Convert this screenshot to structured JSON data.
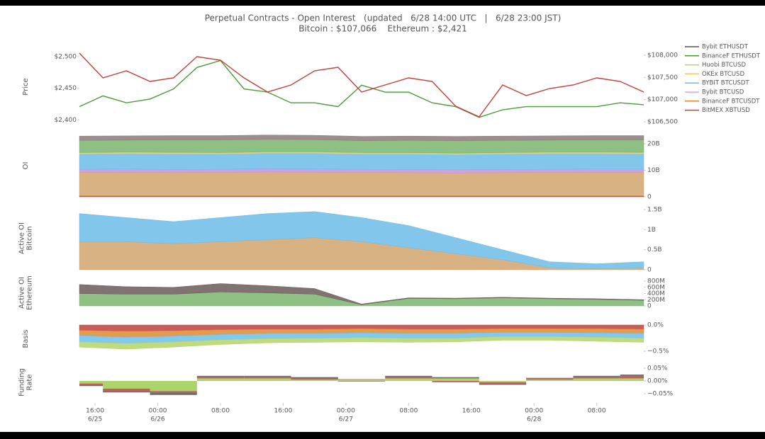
{
  "title": "Perpetual Contracts - Open Interest   (updated   6/28 14:00 UTC   |   6/28 23:00 JST)",
  "subtitle": "Bitcoin : $107,066    Ethereum : $2,421",
  "legend": {
    "corner": "right",
    "items": [
      {
        "name": "Bybit ETHUSDT",
        "color": "#5a5050"
      },
      {
        "name": "BinanceF ETHUSDT",
        "color": "#4c9a3c"
      },
      {
        "name": "Huobi BTCUSD",
        "color": "#b5d36a"
      },
      {
        "name": "OKEx BTCUSD",
        "color": "#e8c56a"
      },
      {
        "name": "BYBIT BTCUSDT",
        "color": "#6cc0ec"
      },
      {
        "name": "Bybit BTCUSD",
        "color": "#d8a8d8"
      },
      {
        "name": "BinanceF BTCUSDT",
        "color": "#e08a30"
      },
      {
        "name": "BitMEX XBTUSD",
        "color": "#c0403a"
      }
    ]
  },
  "chart_data": [
    {
      "type": "line",
      "ylabel": [
        "Price"
      ],
      "tick_color": "#4a70b0",
      "y2tick_color": "#c0403a",
      "xlim": [
        "6/25 14:00",
        "6/28 14:00"
      ],
      "x": [
        "6/25 14:00",
        "6/25 17:00",
        "6/25 20:00",
        "6/25 23:00",
        "6/26 02:00",
        "6/26 05:00",
        "6/26 08:00",
        "6/26 11:00",
        "6/26 14:00",
        "6/26 17:00",
        "6/26 20:00",
        "6/26 23:00",
        "6/27 02:00",
        "6/27 05:00",
        "6/27 08:00",
        "6/27 11:00",
        "6/27 14:00",
        "6/27 17:00",
        "6/27 20:00",
        "6/27 23:00",
        "6/28 02:00",
        "6/28 05:00",
        "6/28 08:00",
        "6/28 11:00",
        "6/28 14:00"
      ],
      "ylim": [
        2388,
        2517
      ],
      "yticks": [
        {
          "value": 2400,
          "label": "$2,400"
        },
        {
          "value": 2450,
          "label": "$2,450"
        },
        {
          "value": 2500,
          "label": "$2,500"
        }
      ],
      "y2lim": [
        106372,
        108207
      ],
      "y2ticks": [
        {
          "value": 106500,
          "label": "$106,500"
        },
        {
          "value": 107000,
          "label": "$107,000"
        },
        {
          "value": 107500,
          "label": "$107,500"
        },
        {
          "value": 108000,
          "label": "$108,000"
        }
      ],
      "series": [
        {
          "name": "BinanceF ETHUSDT",
          "color": "#4c9a3c",
          "values": [
            2421,
            2438,
            2427,
            2433,
            2449,
            2483,
            2494,
            2449,
            2444,
            2427,
            2427,
            2421,
            2455,
            2444,
            2444,
            2427,
            2421,
            2404,
            2416,
            2421,
            2421,
            2421,
            2421,
            2427,
            2424
          ]
        },
        {
          "name": "BitMEX XBTUSD",
          "color": "#c0403a",
          "axis": "y2",
          "values": [
            108047,
            107489,
            107648,
            107409,
            107489,
            107967,
            107888,
            107489,
            107170,
            107329,
            107648,
            107728,
            107170,
            107329,
            107489,
            107409,
            106851,
            106612,
            107329,
            107090,
            107250,
            107329,
            107489,
            107409,
            107170
          ]
        }
      ]
    },
    {
      "type": "area",
      "ylabel": [
        "OI"
      ],
      "tick_color": "#555",
      "xlim": [
        "6/25 14:00",
        "6/28 14:00"
      ],
      "x": [
        "6/25 14:00",
        "6/25 20:00",
        "6/26 02:00",
        "6/26 08:00",
        "6/26 14:00",
        "6/26 20:00",
        "6/27 02:00",
        "6/27 08:00",
        "6/27 14:00",
        "6/27 20:00",
        "6/28 02:00",
        "6/28 08:00",
        "6/28 14:00"
      ],
      "ylim": [
        0,
        23.5
      ],
      "yticks": [
        0,
        {
          "value": 10,
          "label": "10B"
        },
        {
          "value": 20,
          "label": "20B"
        }
      ],
      "series": [
        {
          "name": "BitMEX XBTUSD",
          "color": "#c0403a",
          "values": [
            0.4,
            0.4,
            0.4,
            0.4,
            0.4,
            0.4,
            0.4,
            0.4,
            0.4,
            0.4,
            0.4,
            0.4,
            0.4
          ]
        },
        {
          "name": "BinanceF BTCUSDT",
          "color": "#d2a56e",
          "values": [
            8.8,
            8.9,
            8.7,
            8.8,
            9.0,
            8.9,
            8.8,
            8.7,
            8.6,
            8.7,
            8.8,
            8.9,
            8.9
          ]
        },
        {
          "name": "Bybit BTCUSD",
          "color": "#c890d8",
          "values": [
            1.2,
            1.2,
            1.2,
            1.2,
            1.2,
            1.2,
            1.2,
            1.2,
            1.2,
            1.2,
            1.2,
            1.2,
            1.2
          ]
        },
        {
          "name": "BYBIT BTCUSDT",
          "color": "#6cbce8",
          "values": [
            5.8,
            5.9,
            6.0,
            5.8,
            5.9,
            6.0,
            5.8,
            5.9,
            5.8,
            5.9,
            6.0,
            5.9,
            5.8
          ]
        },
        {
          "name": "OKEx BTCUSD",
          "color": "#e8d080",
          "values": [
            0.3,
            0.3,
            0.3,
            0.3,
            0.3,
            0.3,
            0.3,
            0.3,
            0.3,
            0.3,
            0.3,
            0.3,
            0.3
          ]
        },
        {
          "name": "Huobi BTCUSD",
          "color": "#b5d36a",
          "values": [
            0.2,
            0.2,
            0.2,
            0.2,
            0.2,
            0.2,
            0.2,
            0.2,
            0.2,
            0.2,
            0.2,
            0.2,
            0.2
          ]
        },
        {
          "name": "BinanceF ETHUSDT",
          "color": "#79b56c",
          "values": [
            4.6,
            4.5,
            4.7,
            4.8,
            4.7,
            4.6,
            4.5,
            4.6,
            4.7,
            4.6,
            4.5,
            4.6,
            4.7
          ]
        },
        {
          "name": "Bybit ETHUSDT",
          "color": "#8a7a78",
          "values": [
            1.6,
            1.6,
            1.6,
            1.6,
            1.6,
            1.6,
            1.6,
            1.6,
            1.6,
            1.6,
            1.6,
            1.6,
            1.6
          ]
        }
      ]
    },
    {
      "type": "area",
      "ylabel": [
        "Active OI",
        "Bitcoin"
      ],
      "tick_color": "#c0403a",
      "xlim": [
        "6/25 14:00",
        "6/28 14:00"
      ],
      "x": [
        "6/25 14:00",
        "6/25 20:00",
        "6/26 02:00",
        "6/26 08:00",
        "6/26 14:00",
        "6/26 20:00",
        "6/27 02:00",
        "6/27 08:00",
        "6/27 14:00",
        "6/27 20:00",
        "6/28 02:00",
        "6/28 08:00",
        "6/28 14:00"
      ],
      "ylim": [
        0,
        1.57
      ],
      "yticks": [
        0,
        {
          "value": 0.5,
          "label": "0.5B"
        },
        {
          "value": 1,
          "label": "1B"
        },
        {
          "value": 1.5,
          "label": "1.5B"
        }
      ],
      "series": [
        {
          "name": "BinanceF BTCUSDT",
          "color": "#d2a56e",
          "values": [
            0.7,
            0.7,
            0.65,
            0.7,
            0.75,
            0.8,
            0.7,
            0.55,
            0.4,
            0.25,
            0.05,
            0.02,
            0.05
          ]
        },
        {
          "name": "BYBIT BTCUSDT",
          "color": "#6cbce8",
          "values": [
            0.7,
            0.6,
            0.55,
            0.6,
            0.65,
            0.65,
            0.6,
            0.55,
            0.4,
            0.25,
            0.15,
            0.13,
            0.15
          ]
        }
      ]
    },
    {
      "type": "area",
      "ylabel": [
        "Active OI",
        "Ethereum"
      ],
      "tick_color": "#4a70b0",
      "xlim": [
        "6/25 14:00",
        "6/28 14:00"
      ],
      "x": [
        "6/25 14:00",
        "6/25 20:00",
        "6/26 02:00",
        "6/26 08:00",
        "6/26 14:00",
        "6/26 20:00",
        "6/27 02:00",
        "6/27 08:00",
        "6/27 14:00",
        "6/27 20:00",
        "6/28 02:00",
        "6/28 08:00",
        "6/28 14:00"
      ],
      "ylim": [
        0,
        846
      ],
      "yticks": [
        0,
        {
          "value": 200,
          "label": "200M"
        },
        {
          "value": 400,
          "label": "400M"
        },
        {
          "value": 600,
          "label": "600M"
        },
        {
          "value": 800,
          "label": "800M"
        }
      ],
      "series": [
        {
          "name": "BinanceF ETHUSDT",
          "color": "#79b56c",
          "values": [
            400,
            380,
            380,
            450,
            420,
            380,
            40,
            240,
            230,
            260,
            230,
            210,
            180
          ]
        },
        {
          "name": "Bybit ETHUSDT",
          "color": "#6a5a58",
          "values": [
            290,
            240,
            220,
            270,
            230,
            180,
            20,
            20,
            20,
            20,
            20,
            20,
            20
          ]
        }
      ]
    },
    {
      "type": "area",
      "ylabel": [
        "Basis"
      ],
      "tick_color": "#4c9a3c",
      "xlim": [
        "6/25 14:00",
        "6/28 14:00"
      ],
      "x": [
        "6/25 14:00",
        "6/25 20:00",
        "6/26 02:00",
        "6/26 08:00",
        "6/26 14:00",
        "6/26 20:00",
        "6/27 02:00",
        "6/27 08:00",
        "6/27 14:00",
        "6/27 20:00",
        "6/28 02:00",
        "6/28 08:00",
        "6/28 14:00"
      ],
      "ylim": [
        -0.62,
        0.095
      ],
      "yticks": [
        {
          "value": 0,
          "label": "0.0%"
        },
        {
          "value": -0.5,
          "label": "−0.5%"
        }
      ],
      "series": [
        {
          "name": "BitMEX XBTUSD",
          "color": "#c0403a",
          "values": [
            -0.1,
            -0.12,
            -0.11,
            -0.09,
            -0.08,
            -0.08,
            -0.07,
            -0.08,
            -0.08,
            -0.07,
            -0.07,
            -0.07,
            -0.08
          ]
        },
        {
          "name": "BinanceF BTCUSDT",
          "color": "#e08a30",
          "values": [
            -0.1,
            -0.11,
            -0.1,
            -0.09,
            -0.08,
            -0.08,
            -0.08,
            -0.08,
            -0.08,
            -0.07,
            -0.07,
            -0.08,
            -0.08
          ]
        },
        {
          "name": "BYBIT BTCUSDT",
          "color": "#6cc0ec",
          "values": [
            -0.12,
            -0.12,
            -0.11,
            -0.1,
            -0.1,
            -0.09,
            -0.09,
            -0.09,
            -0.09,
            -0.08,
            -0.08,
            -0.08,
            -0.09
          ]
        },
        {
          "name": "BinanceF ETHUSDT",
          "color": "#b5d36a",
          "values": [
            -0.1,
            -0.11,
            -0.1,
            -0.09,
            -0.08,
            -0.08,
            -0.08,
            -0.08,
            -0.07,
            -0.07,
            -0.07,
            -0.08,
            -0.08
          ]
        }
      ]
    },
    {
      "type": "bar",
      "ylabel": [
        "Funding",
        "Rate"
      ],
      "tick_color": "#555",
      "xlim": [
        "6/25 14:00",
        "6/28 14:00"
      ],
      "x": [
        "6/25 14:00",
        "6/25 20:00",
        "6/26 02:00",
        "6/26 08:00",
        "6/26 14:00",
        "6/26 20:00",
        "6/27 02:00",
        "6/27 08:00",
        "6/27 14:00",
        "6/27 20:00",
        "6/28 02:00",
        "6/28 08:00",
        "6/28 14:00"
      ],
      "ylim": [
        -0.075,
        0.064
      ],
      "yticks": [
        {
          "value": 0.05,
          "label": "0.05%"
        },
        {
          "value": 0,
          "label": "0.00%"
        },
        {
          "value": -0.05,
          "label": "−0.05%"
        }
      ],
      "xticks": [
        {
          "value": "6/25 16:00",
          "label": "16:00",
          "sublabel": "6/25"
        },
        {
          "value": "6/26 00:00",
          "label": "00:00",
          "sublabel": "6/26"
        },
        {
          "value": "6/26 08:00",
          "label": "08:00"
        },
        {
          "value": "6/26 16:00",
          "label": "16:00"
        },
        {
          "value": "6/27 00:00",
          "label": "00:00",
          "sublabel": "6/27"
        },
        {
          "value": "6/27 08:00",
          "label": "08:00"
        },
        {
          "value": "6/27 16:00",
          "label": "16:00"
        },
        {
          "value": "6/28 00:00",
          "label": "00:00",
          "sublabel": "6/28"
        },
        {
          "value": "6/28 08:00",
          "label": "08:00"
        }
      ],
      "series": [
        {
          "name": "BinanceF ETHUSDT",
          "color": "#9ccc50",
          "values": [
            -0.01,
            -0.03,
            -0.04,
            0.01,
            0.01,
            0.005,
            0.005,
            0.01,
            0.01,
            -0.005,
            0.005,
            0.01,
            0.01
          ]
        },
        {
          "name": "BitMEX XBTUSD",
          "color": "#c0403a",
          "values": [
            -0.005,
            -0.01,
            -0.005,
            0.005,
            0.005,
            0.005,
            0.002,
            0.005,
            -0.005,
            -0.005,
            0.005,
            0.005,
            0.01
          ]
        },
        {
          "name": "Bybit ETHUSDT",
          "color": "#5a5050",
          "values": [
            -0.005,
            -0.005,
            -0.01,
            0.005,
            0.005,
            0.005,
            -0.002,
            0.005,
            0.005,
            -0.005,
            0.002,
            0.005,
            0.005
          ]
        }
      ]
    }
  ]
}
